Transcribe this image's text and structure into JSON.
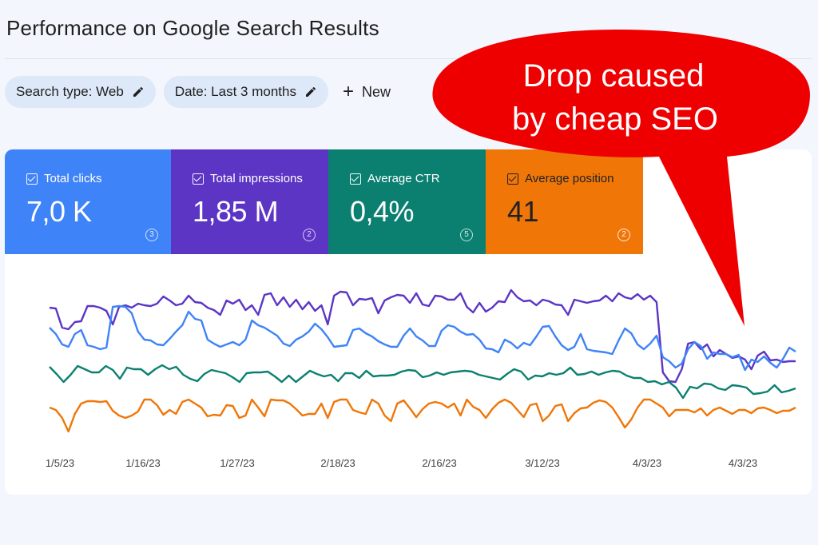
{
  "page": {
    "title": "Performance on Google Search Results"
  },
  "filters": {
    "search_type": "Search type: Web",
    "date": "Date: Last 3 months",
    "new_label": "New"
  },
  "metrics": [
    {
      "label": "Total clicks",
      "value": "7,0 K",
      "info": "3",
      "color": "#3f83f8"
    },
    {
      "label": "Total impressions",
      "value": "1,85 M",
      "info": "2",
      "color": "#5c35c5"
    },
    {
      "label": "Average CTR",
      "value": "0,4%",
      "info": "5",
      "color": "#0b8071"
    },
    {
      "label": "Average position",
      "value": "41",
      "info": "2",
      "color": "#f07608"
    }
  ],
  "annotation": {
    "line1": "Drop caused",
    "line2": "by cheap SEO",
    "color": "#ee0000"
  },
  "chart_data": {
    "type": "line",
    "x_tick_labels": [
      "1/5/23",
      "1/16/23",
      "1/27/23",
      "2/18/23",
      "2/16/23",
      "3/12/23",
      "4/3/23",
      "4/3/23"
    ],
    "y_axis": "unlabeled (relative scale per metric)",
    "grid": false,
    "series": [
      {
        "name": "Total impressions",
        "color": "#5c35c5",
        "values": [
          385,
          386,
          410,
          412,
          403,
          402,
          383,
          383,
          385,
          389,
          406,
          384,
          382,
          385,
          380,
          382,
          383,
          380,
          371,
          376,
          382,
          380,
          370,
          378,
          379,
          385,
          388,
          394,
          376,
          380,
          375,
          388,
          382,
          394,
          369,
          367,
          382,
          372,
          384,
          375,
          387,
          378,
          389,
          382,
          406,
          370,
          365,
          366,
          382,
          374,
          375,
          373,
          392,
          376,
          372,
          369,
          370,
          379,
          367,
          381,
          383,
          370,
          371,
          375,
          375,
          367,
          384,
          391,
          379,
          390,
          385,
          377,
          378,
          363,
          372,
          377,
          376,
          382,
          375,
          377,
          381,
          382,
          394,
          375,
          377,
          379,
          377,
          376,
          370,
          377,
          367,
          372,
          374,
          368,
          375,
          370,
          378,
          466,
          477,
          478,
          462,
          430,
          428,
          437,
          431,
          446,
          438,
          443,
          448,
          446,
          450,
          462,
          445,
          440,
          451,
          450,
          453,
          452,
          452
        ]
      },
      {
        "name": "Total clicks",
        "color": "#3f83f8",
        "values": [
          410,
          418,
          431,
          434,
          418,
          413,
          432,
          434,
          437,
          435,
          384,
          383,
          384,
          392,
          415,
          425,
          426,
          431,
          432,
          424,
          415,
          407,
          390,
          399,
          401,
          425,
          430,
          434,
          431,
          428,
          432,
          425,
          401,
          407,
          410,
          415,
          420,
          430,
          433,
          425,
          421,
          415,
          405,
          412,
          422,
          434,
          433,
          432,
          413,
          411,
          417,
          421,
          427,
          431,
          434,
          434,
          420,
          411,
          421,
          426,
          433,
          433,
          414,
          407,
          409,
          415,
          419,
          418,
          425,
          436,
          437,
          441,
          425,
          429,
          436,
          429,
          432,
          421,
          409,
          408,
          421,
          432,
          438,
          434,
          418,
          437,
          439,
          440,
          441,
          443,
          426,
          411,
          417,
          431,
          437,
          430,
          420,
          447,
          452,
          460,
          455,
          437,
          428,
          433,
          449,
          441,
          443,
          443,
          447,
          444,
          463,
          450,
          453,
          446,
          454,
          460,
          449,
          435,
          440
        ]
      },
      {
        "name": "Average CTR",
        "color": "#0b8071",
        "values": [
          459,
          468,
          478,
          469,
          458,
          462,
          466,
          466,
          458,
          463,
          474,
          460,
          462,
          462,
          469,
          462,
          457,
          462,
          459,
          469,
          474,
          477,
          468,
          463,
          465,
          467,
          472,
          478,
          467,
          466,
          466,
          465,
          471,
          478,
          470,
          478,
          471,
          464,
          468,
          471,
          469,
          477,
          467,
          467,
          473,
          464,
          471,
          470,
          470,
          469,
          465,
          463,
          464,
          472,
          470,
          466,
          469,
          466,
          465,
          464,
          465,
          469,
          471,
          473,
          475,
          468,
          462,
          465,
          475,
          470,
          471,
          467,
          469,
          467,
          460,
          469,
          468,
          465,
          469,
          466,
          464,
          465,
          470,
          473,
          473,
          478,
          477,
          481,
          478,
          485,
          498,
          484,
          486,
          480,
          481,
          486,
          488,
          482,
          483,
          485,
          493,
          492,
          490,
          482,
          491,
          489,
          486
        ]
      },
      {
        "name": "Average position",
        "color": "#f07608",
        "values": [
          510,
          513,
          523,
          540,
          518,
          505,
          502,
          502,
          503,
          502,
          514,
          520,
          523,
          520,
          515,
          500,
          500,
          507,
          519,
          513,
          518,
          503,
          500,
          505,
          510,
          521,
          519,
          520,
          507,
          508,
          523,
          520,
          500,
          510,
          521,
          500,
          501,
          501,
          505,
          512,
          520,
          518,
          518,
          505,
          523,
          503,
          500,
          500,
          513,
          516,
          518,
          500,
          505,
          520,
          527,
          505,
          501,
          511,
          522,
          512,
          505,
          503,
          505,
          510,
          505,
          520,
          500,
          509,
          513,
          523,
          512,
          504,
          500,
          504,
          513,
          522,
          507,
          505,
          527,
          520,
          508,
          506,
          527,
          517,
          511,
          510,
          504,
          501,
          503,
          510,
          522,
          535,
          525,
          510,
          500,
          500,
          505,
          510,
          521,
          513,
          513,
          513,
          516,
          511,
          520,
          513,
          510,
          514,
          518,
          513,
          513,
          517,
          511,
          510,
          513,
          517,
          514,
          514,
          510
        ]
      }
    ]
  }
}
